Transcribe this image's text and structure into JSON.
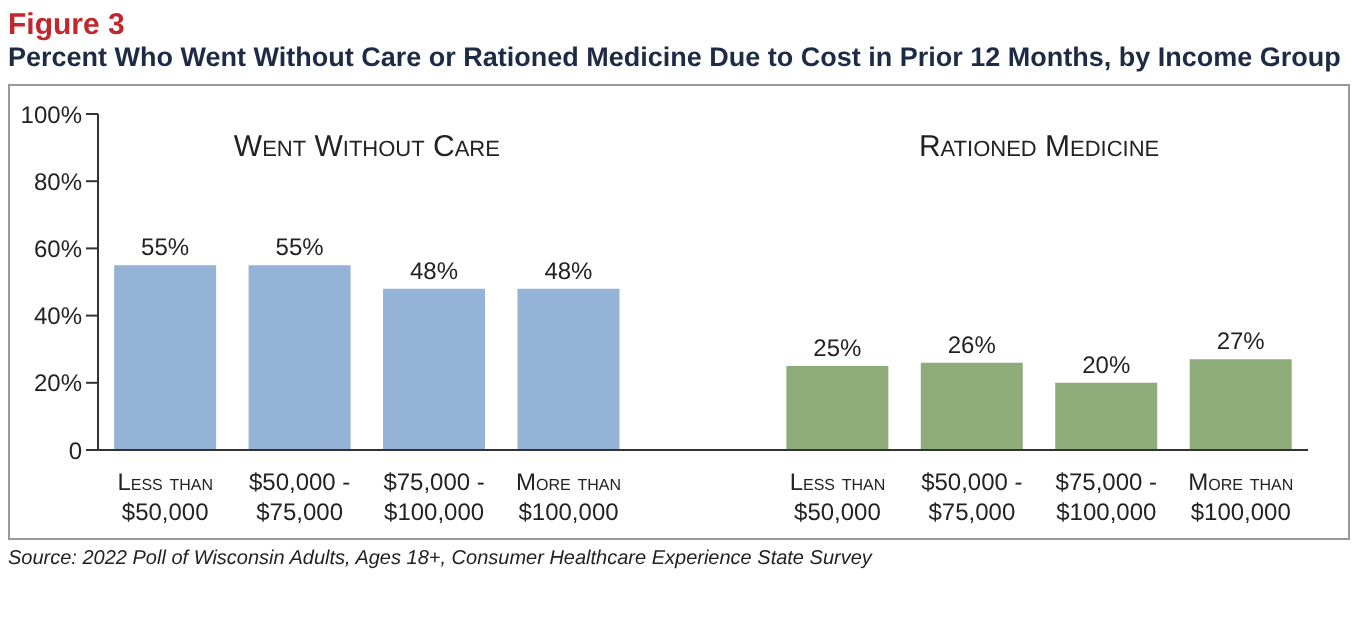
{
  "chart_data": {
    "type": "bar",
    "title": "Figure 3",
    "subtitle": "Percent Who Went Without Care or Rationed Medicine Due to Cost in Prior 12 Months, by Income Group",
    "categories": [
      "Less than $50,000",
      "$50,000 - $75,000",
      "$75,000 - $100,000",
      "More than $100,000",
      null,
      "Less than $50,000",
      "$50,000 - $75,000",
      "$75,000 - $100,000",
      "More than $100,000"
    ],
    "values": [
      55,
      55,
      48,
      48,
      null,
      25,
      26,
      20,
      27
    ],
    "colors": [
      "#95b3d7",
      "#95b3d7",
      "#95b3d7",
      "#95b3d7",
      null,
      "#8eab7a",
      "#8eab7a",
      "#8eab7a",
      "#8eab7a"
    ],
    "value_labels": [
      "55%",
      "55%",
      "48%",
      "48%",
      null,
      "25%",
      "26%",
      "20%",
      "27%"
    ],
    "ylim": [
      0,
      100
    ],
    "yticks": [
      0,
      {
        "value": 20,
        "label": "20%"
      },
      {
        "value": 40,
        "label": "40%"
      },
      {
        "value": 60,
        "label": "60%"
      },
      {
        "value": 80,
        "label": "80%"
      },
      {
        "value": 100,
        "label": "100%"
      }
    ],
    "grid": false,
    "annotations": [
      "Went Without Care",
      "Rationed Medicine",
      "Source: 2022 Poll of Wisconsin Adults, Ages 18+, Consumer Healthcare Experience State Survey"
    ]
  }
}
